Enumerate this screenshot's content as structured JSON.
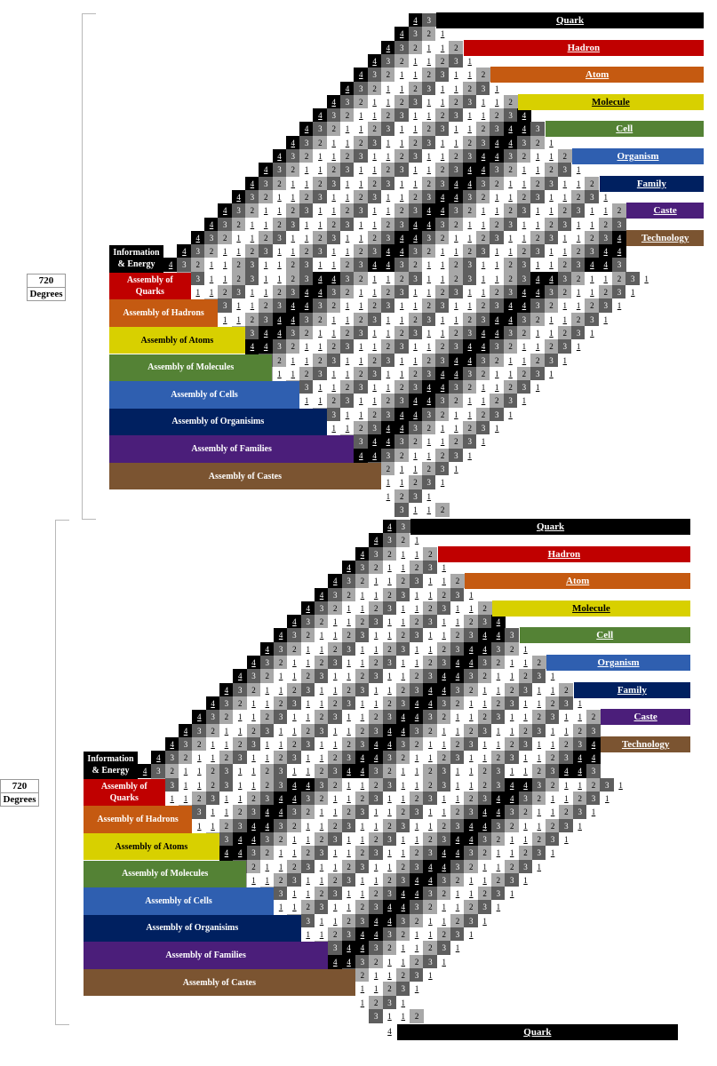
{
  "sequence": [
    "1",
    "2",
    "3",
    "1",
    "1",
    "2",
    "3",
    "1",
    "1",
    "2",
    "3",
    "4",
    "4",
    "3",
    "2",
    "1"
  ],
  "level_colors": {
    "black": "#000000",
    "red": "#c00000",
    "orange": "#c55a11",
    "yellow": "#d8d000",
    "green": "#548235",
    "blue": "#2f5fb0",
    "navy": "#002060",
    "purple": "#4b1e7a",
    "brown": "#7b5431"
  },
  "cell_colors": {
    "1": "#ffffff",
    "2": "#a8a8a8",
    "3": "#5e5e5e",
    "4": "#000000"
  },
  "diagrams": [
    {
      "degrees": {
        "value": "720",
        "unit": "Degrees"
      },
      "levels": [
        {
          "label": "Quark",
          "color": "black"
        },
        {
          "label": "Hadron",
          "color": "red"
        },
        {
          "label": "Atom",
          "color": "orange"
        },
        {
          "label": "Molecule",
          "color": "yellow"
        },
        {
          "label": "Cell",
          "color": "green"
        },
        {
          "label": "Organism",
          "color": "blue"
        },
        {
          "label": "Family",
          "color": "navy"
        },
        {
          "label": "Caste",
          "color": "purple"
        },
        {
          "label": "Technology",
          "color": "brown"
        }
      ],
      "assemblies": [
        {
          "label": "Information & Energy",
          "color": "black"
        },
        {
          "label": "Assembly of Quarks",
          "color": "red"
        },
        {
          "label": "Assembly of Hadrons",
          "color": "orange"
        },
        {
          "label": "Assembly of Atoms",
          "color": "yellow"
        },
        {
          "label": "Assembly of Molecules",
          "color": "green"
        },
        {
          "label": "Assembly of Cells",
          "color": "blue"
        },
        {
          "label": "Assembly of Organisims",
          "color": "navy"
        },
        {
          "label": "Assembly of Families",
          "color": "purple"
        },
        {
          "label": "Assembly of Castes",
          "color": "brown"
        }
      ]
    },
    {
      "degrees": {
        "value": "720",
        "unit": "Degrees"
      },
      "levels": [
        {
          "label": "Quark",
          "color": "black"
        },
        {
          "label": "Hadron",
          "color": "red"
        },
        {
          "label": "Atom",
          "color": "orange"
        },
        {
          "label": "Molecule",
          "color": "yellow"
        },
        {
          "label": "Cell",
          "color": "green"
        },
        {
          "label": "Organism",
          "color": "blue"
        },
        {
          "label": "Family",
          "color": "navy"
        },
        {
          "label": "Caste",
          "color": "purple"
        },
        {
          "label": "Technology",
          "color": "brown"
        }
      ],
      "assemblies": [
        {
          "label": "Information & Energy",
          "color": "black"
        },
        {
          "label": "Assembly of Quarks",
          "color": "red"
        },
        {
          "label": "Assembly of Hadrons",
          "color": "orange"
        },
        {
          "label": "Assembly of Atoms",
          "color": "yellow"
        },
        {
          "label": "Assembly of Molecules",
          "color": "green"
        },
        {
          "label": "Assembly of Cells",
          "color": "blue"
        },
        {
          "label": "Assembly of Organisims",
          "color": "navy"
        },
        {
          "label": "Assembly of Families",
          "color": "purple"
        },
        {
          "label": "Assembly of Castes",
          "color": "brown"
        }
      ],
      "footer_level": {
        "marker": "4",
        "label": "Quark",
        "color": "black"
      }
    }
  ]
}
